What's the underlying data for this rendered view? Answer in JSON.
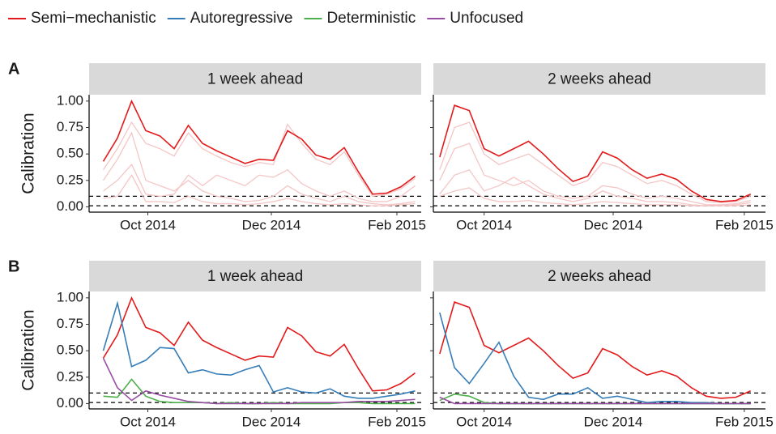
{
  "chart_data": [
    {
      "type": "line",
      "panel_label": "A",
      "title": "1 week ahead",
      "ylabel": "Calibration",
      "x": [
        8,
        15,
        22,
        29,
        36,
        43,
        50,
        57,
        64,
        71,
        78,
        85,
        92,
        99,
        106,
        113,
        120,
        127,
        134,
        141,
        148,
        155,
        162
      ],
      "xlim": [
        1,
        165
      ],
      "ylim": [
        -0.05,
        1.06
      ],
      "xticks": [
        {
          "value": 30,
          "label": "Oct 2014"
        },
        {
          "value": 91,
          "label": "Dec 2014"
        },
        {
          "value": 153,
          "label": "Feb 2015"
        }
      ],
      "yticks": [
        {
          "value": 0,
          "label": "0.00"
        },
        {
          "value": 0.25,
          "label": "0.25"
        },
        {
          "value": 0.5,
          "label": "0.50"
        },
        {
          "value": 0.75,
          "label": "0.75"
        },
        {
          "value": 1,
          "label": "1.00"
        }
      ],
      "hlines": [
        0.1,
        0.01
      ],
      "series": [
        {
          "color": "#f4c6c6",
          "values": [
            0.35,
            0.55,
            0.8,
            0.6,
            0.55,
            0.48,
            0.7,
            0.55,
            0.48,
            0.42,
            0.38,
            0.42,
            0.4,
            0.78,
            0.6,
            0.45,
            0.4,
            0.52,
            0.3,
            0.1,
            0.12,
            0.17,
            0.27
          ]
        },
        {
          "color": "#f4c6c6",
          "values": [
            0.25,
            0.45,
            0.7,
            0.25,
            0.2,
            0.15,
            0.25,
            0.15,
            0.1,
            0.08,
            0.05,
            0.06,
            0.1,
            0.2,
            0.12,
            0.08,
            0.05,
            0.1,
            0.05,
            0.03,
            0.02,
            0.03,
            0.05
          ]
        },
        {
          "color": "#f4c6c6",
          "values": [
            0.15,
            0.25,
            0.4,
            0.12,
            0.1,
            0.12,
            0.3,
            0.2,
            0.3,
            0.25,
            0.2,
            0.3,
            0.28,
            0.35,
            0.22,
            0.15,
            0.1,
            0.15,
            0.08,
            0.05,
            0.05,
            0.1,
            0.2
          ]
        },
        {
          "color": "#f4c6c6",
          "values": [
            0.08,
            0.1,
            0.3,
            0.05,
            0.05,
            0.04,
            0.1,
            0.05,
            0.03,
            0.03,
            0.02,
            0.03,
            0.05,
            0.08,
            0.05,
            0.03,
            0.02,
            0.03,
            0.02,
            0.01,
            0.01,
            0.02,
            0.03
          ]
        },
        {
          "color": "#e31a1c",
          "values": [
            0.43,
            0.65,
            1.0,
            0.72,
            0.67,
            0.55,
            0.77,
            0.6,
            0.53,
            0.47,
            0.41,
            0.45,
            0.44,
            0.72,
            0.64,
            0.49,
            0.45,
            0.56,
            0.33,
            0.12,
            0.13,
            0.19,
            0.29
          ]
        }
      ]
    },
    {
      "type": "line",
      "title": "2 weeks ahead",
      "x": [
        9,
        16,
        23,
        30,
        37,
        44,
        51,
        58,
        65,
        72,
        79,
        86,
        93,
        100,
        107,
        114,
        121,
        128,
        135,
        142,
        149,
        156
      ],
      "xlim": [
        6,
        163
      ],
      "ylim": [
        -0.05,
        1.06
      ],
      "xticks": [
        {
          "value": 30,
          "label": "Oct 2014"
        },
        {
          "value": 91,
          "label": "Dec 2014"
        },
        {
          "value": 153,
          "label": "Feb 2015"
        }
      ],
      "hlines": [
        0.1,
        0.01
      ],
      "series": [
        {
          "color": "#f4c6c6",
          "values": [
            0.35,
            0.75,
            0.8,
            0.5,
            0.4,
            0.45,
            0.5,
            0.4,
            0.3,
            0.2,
            0.25,
            0.42,
            0.38,
            0.3,
            0.22,
            0.25,
            0.2,
            0.12,
            0.05,
            0.04,
            0.05,
            0.1
          ]
        },
        {
          "color": "#f4c6c6",
          "values": [
            0.25,
            0.55,
            0.6,
            0.3,
            0.25,
            0.2,
            0.25,
            0.15,
            0.1,
            0.08,
            0.1,
            0.2,
            0.18,
            0.12,
            0.08,
            0.1,
            0.08,
            0.05,
            0.02,
            0.02,
            0.03,
            0.06
          ]
        },
        {
          "color": "#f4c6c6",
          "values": [
            0.12,
            0.3,
            0.35,
            0.15,
            0.2,
            0.28,
            0.2,
            0.12,
            0.08,
            0.05,
            0.08,
            0.15,
            0.1,
            0.08,
            0.05,
            0.05,
            0.04,
            0.02,
            0.01,
            0.01,
            0.02,
            0.04
          ]
        },
        {
          "color": "#f4c6c6",
          "values": [
            0.1,
            0.15,
            0.18,
            0.08,
            0.05,
            0.05,
            0.06,
            0.04,
            0.03,
            0.02,
            0.03,
            0.05,
            0.04,
            0.03,
            0.02,
            0.02,
            0.02,
            0.01,
            0.01,
            0.01,
            0.01,
            0.02
          ]
        },
        {
          "color": "#e31a1c",
          "values": [
            0.47,
            0.96,
            0.91,
            0.55,
            0.48,
            0.55,
            0.62,
            0.5,
            0.36,
            0.24,
            0.29,
            0.52,
            0.46,
            0.35,
            0.27,
            0.31,
            0.26,
            0.15,
            0.07,
            0.05,
            0.06,
            0.12
          ]
        }
      ]
    },
    {
      "type": "line",
      "panel_label": "B",
      "title": "1 week ahead",
      "ylabel": "Calibration",
      "x": [
        8,
        15,
        22,
        29,
        36,
        43,
        50,
        57,
        64,
        71,
        78,
        85,
        92,
        99,
        106,
        113,
        120,
        127,
        134,
        141,
        148,
        155,
        162
      ],
      "xlim": [
        1,
        165
      ],
      "ylim": [
        -0.05,
        1.06
      ],
      "xticks": [
        {
          "value": 30,
          "label": "Oct 2014"
        },
        {
          "value": 91,
          "label": "Dec 2014"
        },
        {
          "value": 153,
          "label": "Feb 2015"
        }
      ],
      "yticks": [
        {
          "value": 0,
          "label": "0.00"
        },
        {
          "value": 0.25,
          "label": "0.25"
        },
        {
          "value": 0.5,
          "label": "0.50"
        },
        {
          "value": 0.75,
          "label": "0.75"
        },
        {
          "value": 1,
          "label": "1.00"
        }
      ],
      "hlines": [
        0.1,
        0.01
      ],
      "series": [
        {
          "name": "Semi−mechanistic",
          "color": "#e31a1c",
          "values": [
            0.43,
            0.65,
            1.0,
            0.72,
            0.67,
            0.55,
            0.77,
            0.6,
            0.53,
            0.47,
            0.41,
            0.45,
            0.44,
            0.72,
            0.64,
            0.49,
            0.45,
            0.56,
            0.33,
            0.12,
            0.13,
            0.19,
            0.29
          ]
        },
        {
          "name": "Autoregressive",
          "color": "#377eb8",
          "values": [
            0.5,
            0.95,
            0.35,
            0.41,
            0.53,
            0.52,
            0.29,
            0.32,
            0.28,
            0.27,
            0.32,
            0.36,
            0.11,
            0.15,
            0.11,
            0.1,
            0.14,
            0.07,
            0.05,
            0.05,
            0.07,
            0.09,
            0.12
          ]
        },
        {
          "name": "Deterministic",
          "color": "#4daf4a",
          "values": [
            0.07,
            0.06,
            0.23,
            0.07,
            0.02,
            0.01,
            0.01,
            0.01,
            0,
            0.01,
            0,
            0,
            0.01,
            0,
            0,
            0,
            0,
            0.01,
            0.01,
            0,
            0,
            0,
            0
          ]
        },
        {
          "name": "Unfocused",
          "color": "#984ea3",
          "values": [
            0.43,
            0.15,
            0.03,
            0.12,
            0.08,
            0.05,
            0.02,
            0.01,
            0,
            0,
            0,
            0,
            0,
            0,
            0.01,
            0.01,
            0.01,
            0.01,
            0.02,
            0.02,
            0.02,
            0.03,
            0.04
          ]
        }
      ]
    },
    {
      "type": "line",
      "title": "2 weeks ahead",
      "x": [
        9,
        16,
        23,
        30,
        37,
        44,
        51,
        58,
        65,
        72,
        79,
        86,
        93,
        100,
        107,
        114,
        121,
        128,
        135,
        142,
        149,
        156
      ],
      "xlim": [
        6,
        163
      ],
      "ylim": [
        -0.05,
        1.06
      ],
      "xticks": [
        {
          "value": 30,
          "label": "Oct 2014"
        },
        {
          "value": 91,
          "label": "Dec 2014"
        },
        {
          "value": 153,
          "label": "Feb 2015"
        }
      ],
      "hlines": [
        0.1,
        0.01
      ],
      "series": [
        {
          "color": "#e31a1c",
          "values": [
            0.47,
            0.96,
            0.91,
            0.55,
            0.48,
            0.55,
            0.62,
            0.5,
            0.36,
            0.24,
            0.29,
            0.52,
            0.46,
            0.35,
            0.27,
            0.31,
            0.26,
            0.15,
            0.07,
            0.05,
            0.06,
            0.12
          ]
        },
        {
          "color": "#377eb8",
          "values": [
            0.86,
            0.34,
            0.19,
            0.38,
            0.58,
            0.26,
            0.06,
            0.04,
            0.09,
            0.09,
            0.15,
            0.05,
            0.07,
            0.04,
            0.01,
            0.02,
            0.02,
            0.01,
            0.01,
            0,
            0,
            0
          ]
        },
        {
          "color": "#4daf4a",
          "values": [
            0.03,
            0.09,
            0.07,
            0.01,
            0,
            0,
            0,
            0,
            0,
            0,
            0,
            0,
            0,
            0,
            0,
            0,
            0,
            0,
            0,
            0,
            0,
            0
          ]
        },
        {
          "color": "#984ea3",
          "values": [
            0.06,
            0,
            0,
            0,
            0,
            0,
            0,
            0,
            0,
            0,
            0,
            0,
            0,
            0,
            0,
            0,
            0,
            0,
            0,
            0,
            0,
            0
          ]
        }
      ]
    }
  ]
}
